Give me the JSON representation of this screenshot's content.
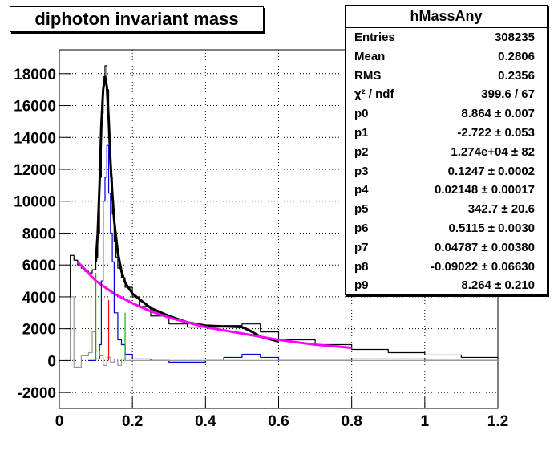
{
  "title": "diphoton invariant mass",
  "stats": {
    "name": "hMassAny",
    "rows": [
      {
        "label": "Entries",
        "value": "308235"
      },
      {
        "label": "Mean",
        "value": "0.2806"
      },
      {
        "label": "RMS",
        "value": "0.2356"
      },
      {
        "label": "χ² / ndf",
        "value": "399.6 / 67"
      },
      {
        "label": "p0",
        "value": "8.864 ± 0.007"
      },
      {
        "label": "p1",
        "value": "-2.722 ± 0.053"
      },
      {
        "label": "p2",
        "value": "1.274e+04 ± 82"
      },
      {
        "label": "p3",
        "value": "0.1247 ± 0.0002"
      },
      {
        "label": "p4",
        "value": "0.02148 ± 0.00017"
      },
      {
        "label": "p5",
        "value": "342.7 ± 20.6"
      },
      {
        "label": "p6",
        "value": "0.5115 ± 0.0030"
      },
      {
        "label": "p7",
        "value": "0.04787 ± 0.00380"
      },
      {
        "label": "p8",
        "value": "-0.09022 ± 0.06630"
      },
      {
        "label": "p9",
        "value": "8.264 ± 0.210"
      }
    ]
  },
  "chart_data": {
    "type": "line",
    "title": "diphoton invariant mass",
    "xlim": [
      0,
      1.2
    ],
    "ylim": [
      -3000,
      19500
    ],
    "xticks": [
      0,
      0.2,
      0.4,
      0.6,
      0.8,
      1,
      1.2
    ],
    "xtick_labels": [
      "0",
      "0.2",
      "0.4",
      "0.6",
      "0.8",
      "1",
      "1.2"
    ],
    "yticks": [
      -2000,
      0,
      2000,
      4000,
      6000,
      8000,
      10000,
      12000,
      14000,
      16000,
      18000
    ],
    "ytick_labels": [
      "-2000",
      "0",
      "2000",
      "4000",
      "6000",
      "8000",
      "10000",
      "12000",
      "14000",
      "16000",
      "18000"
    ],
    "grid": true,
    "colors": {
      "histogram": "#000000",
      "fit_total": "#000000",
      "background_fit": "#ff00ff",
      "residual": "#0000cc",
      "residual_gray": "#999999",
      "green_marker": "#00bb00",
      "red_marker": "#ff0000"
    },
    "series": [
      {
        "id": "histogram",
        "style": "step",
        "x": [
          0.03,
          0.04,
          0.05,
          0.06,
          0.07,
          0.08,
          0.09,
          0.1,
          0.105,
          0.11,
          0.115,
          0.12,
          0.125,
          0.13,
          0.135,
          0.14,
          0.145,
          0.15,
          0.155,
          0.16,
          0.17,
          0.18,
          0.2,
          0.22,
          0.25,
          0.3,
          0.35,
          0.4,
          0.45,
          0.5,
          0.55,
          0.6,
          0.7,
          0.8,
          0.9,
          1.0,
          1.1,
          1.2
        ],
        "y": [
          6600,
          6300,
          6000,
          5800,
          5600,
          5500,
          5700,
          6500,
          8000,
          11500,
          15500,
          17800,
          18500,
          17000,
          14000,
          11500,
          9200,
          7500,
          6500,
          5800,
          5200,
          4600,
          4000,
          3400,
          2800,
          2300,
          2100,
          2100,
          2200,
          2300,
          1800,
          1300,
          1000,
          700,
          500,
          350,
          200,
          150
        ]
      },
      {
        "id": "fit_total",
        "style": "line",
        "x": [
          0.1,
          0.105,
          0.11,
          0.115,
          0.12,
          0.125,
          0.13,
          0.135,
          0.14,
          0.145,
          0.15,
          0.16,
          0.17,
          0.18,
          0.2,
          0.25,
          0.3,
          0.35,
          0.4,
          0.45,
          0.5,
          0.52,
          0.55,
          0.6
        ],
        "y": [
          6200,
          8000,
          11000,
          14800,
          17000,
          17800,
          17200,
          15200,
          12500,
          10500,
          8800,
          6800,
          5600,
          4900,
          4200,
          3300,
          2800,
          2400,
          2200,
          2150,
          2100,
          1900,
          1500,
          1200
        ]
      },
      {
        "id": "background_fit",
        "style": "line",
        "x": [
          0.05,
          0.1,
          0.15,
          0.2,
          0.25,
          0.3,
          0.4,
          0.5,
          0.6,
          0.7,
          0.8
        ],
        "y": [
          6200,
          5000,
          4200,
          3600,
          3100,
          2700,
          2100,
          1700,
          1300,
          1000,
          800
        ]
      },
      {
        "id": "residual",
        "style": "step",
        "x": [
          0.08,
          0.1,
          0.11,
          0.115,
          0.12,
          0.125,
          0.13,
          0.135,
          0.14,
          0.145,
          0.15,
          0.16,
          0.17,
          0.18,
          0.2,
          0.25,
          0.3,
          0.4,
          0.45,
          0.5,
          0.55,
          0.6,
          0.8,
          1.0,
          1.2
        ],
        "y": [
          0,
          100,
          1000,
          5000,
          10000,
          11500,
          13500,
          10500,
          8000,
          6200,
          3000,
          1300,
          1000,
          400,
          100,
          0,
          -100,
          0,
          200,
          400,
          200,
          0,
          100,
          0,
          0
        ]
      },
      {
        "id": "residual_gray",
        "style": "step",
        "x": [
          0.03,
          0.04,
          0.06,
          0.08,
          0.09,
          0.1,
          0.11,
          0.12,
          0.13,
          0.14,
          0.15,
          0.16,
          0.17,
          0.18,
          0.2,
          0.3,
          0.4,
          0.5,
          0.6,
          0.7,
          0.8,
          1.0,
          1.2
        ],
        "y": [
          4000,
          -400,
          300,
          500,
          1800,
          600,
          300,
          -300,
          200,
          -100,
          100,
          -300,
          100,
          0,
          0,
          0,
          0,
          0,
          0,
          0,
          0,
          0,
          0
        ]
      }
    ],
    "markers": [
      {
        "id": "green_left",
        "color": "green_marker",
        "x": 0.1,
        "y_from": 0,
        "y_to": 5500
      },
      {
        "id": "red_center",
        "color": "red_marker",
        "x": 0.135,
        "y_from": 0,
        "y_to": 3800
      },
      {
        "id": "green_right",
        "color": "green_marker",
        "x": 0.18,
        "y_from": 0,
        "y_to": 3000
      }
    ]
  }
}
